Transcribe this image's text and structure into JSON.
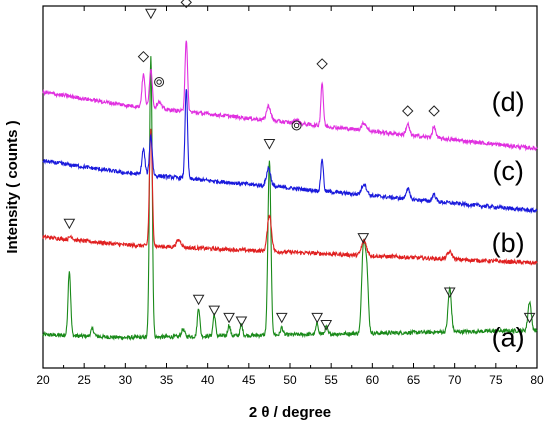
{
  "chart_data": {
    "type": "line",
    "xlabel": "2 θ / degree",
    "ylabel": "Intensity ( counts )",
    "xlim": [
      20,
      80
    ],
    "x_ticks": [
      20,
      25,
      30,
      35,
      40,
      45,
      50,
      55,
      60,
      65,
      70,
      75,
      80
    ],
    "y_ticks_shown": false,
    "legend": "none",
    "y_units": "relative intensity (arbitrary), 0 = bottom of plot, 100 = top",
    "series": [
      {
        "name": "(a)",
        "color": "#1a8a1a",
        "baseline": 8,
        "baseline_slope": 0.04,
        "peaks": [
          {
            "x": 23.2,
            "h": 18,
            "w": 0.16
          },
          {
            "x": 26.0,
            "h": 2,
            "w": 0.2
          },
          {
            "x": 33.1,
            "h": 78,
            "w": 0.16
          },
          {
            "x": 37.0,
            "h": 2,
            "w": 0.2
          },
          {
            "x": 38.9,
            "h": 8,
            "w": 0.15
          },
          {
            "x": 40.8,
            "h": 6,
            "w": 0.15
          },
          {
            "x": 42.6,
            "h": 3,
            "w": 0.15
          },
          {
            "x": 44.1,
            "h": 3,
            "w": 0.15
          },
          {
            "x": 47.5,
            "h": 48,
            "w": 0.18
          },
          {
            "x": 49.0,
            "h": 2,
            "w": 0.15
          },
          {
            "x": 53.3,
            "h": 3,
            "w": 0.15
          },
          {
            "x": 54.4,
            "h": 2,
            "w": 0.15
          },
          {
            "x": 58.9,
            "h": 23,
            "w": 0.2
          },
          {
            "x": 59.3,
            "h": 18,
            "w": 0.2
          },
          {
            "x": 69.4,
            "h": 12,
            "w": 0.2
          },
          {
            "x": 79.1,
            "h": 8,
            "w": 0.2
          }
        ]
      },
      {
        "name": "(b)",
        "color": "#e02020",
        "baseline": 35,
        "baseline_slope": -0.1,
        "peaks": [
          {
            "x": 23.4,
            "h": 1,
            "w": 0.2
          },
          {
            "x": 33.1,
            "h": 32,
            "w": 0.17
          },
          {
            "x": 36.5,
            "h": 2,
            "w": 0.3
          },
          {
            "x": 47.5,
            "h": 10,
            "w": 0.25
          },
          {
            "x": 59.0,
            "h": 4,
            "w": 0.3
          },
          {
            "x": 69.4,
            "h": 2,
            "w": 0.3
          }
        ]
      },
      {
        "name": "(c)",
        "color": "#1a1adc",
        "baseline": 56,
        "baseline_slope": -0.21,
        "peaks": [
          {
            "x": 32.2,
            "h": 7,
            "w": 0.18
          },
          {
            "x": 33.1,
            "h": 11,
            "w": 0.17
          },
          {
            "x": 37.4,
            "h": 25,
            "w": 0.15
          },
          {
            "x": 47.4,
            "h": 5,
            "w": 0.25
          },
          {
            "x": 53.9,
            "h": 9,
            "w": 0.15
          },
          {
            "x": 59.0,
            "h": 3,
            "w": 0.3
          },
          {
            "x": 64.3,
            "h": 3,
            "w": 0.2
          },
          {
            "x": 67.5,
            "h": 2,
            "w": 0.2
          }
        ]
      },
      {
        "name": "(d)",
        "color": "#e030e0",
        "baseline": 75,
        "baseline_slope": -0.24,
        "peaks": [
          {
            "x": 32.2,
            "h": 9,
            "w": 0.18
          },
          {
            "x": 33.1,
            "h": 11,
            "w": 0.17
          },
          {
            "x": 34.1,
            "h": 2,
            "w": 0.25
          },
          {
            "x": 37.4,
            "h": 20,
            "w": 0.15
          },
          {
            "x": 47.4,
            "h": 4,
            "w": 0.25
          },
          {
            "x": 50.8,
            "h": 1,
            "w": 0.25
          },
          {
            "x": 53.9,
            "h": 12,
            "w": 0.15
          },
          {
            "x": 59.0,
            "h": 2,
            "w": 0.3
          },
          {
            "x": 64.3,
            "h": 3,
            "w": 0.2
          },
          {
            "x": 67.5,
            "h": 3,
            "w": 0.2
          }
        ]
      }
    ],
    "markers": [
      {
        "shape": "triangle",
        "x": 23.2,
        "y": 40
      },
      {
        "shape": "triangle",
        "x": 33.1,
        "y": 98
      },
      {
        "shape": "triangle",
        "x": 38.9,
        "y": 19
      },
      {
        "shape": "triangle",
        "x": 40.8,
        "y": 16
      },
      {
        "shape": "triangle",
        "x": 42.6,
        "y": 14
      },
      {
        "shape": "triangle",
        "x": 44.1,
        "y": 13
      },
      {
        "shape": "triangle",
        "x": 47.5,
        "y": 62
      },
      {
        "shape": "triangle",
        "x": 49.0,
        "y": 14
      },
      {
        "shape": "triangle",
        "x": 53.3,
        "y": 14
      },
      {
        "shape": "triangle",
        "x": 54.4,
        "y": 12
      },
      {
        "shape": "triangle",
        "x": 58.9,
        "y": 36
      },
      {
        "shape": "triangle",
        "x": 69.4,
        "y": 21
      },
      {
        "shape": "triangle",
        "x": 79.1,
        "y": 14
      },
      {
        "shape": "diamond",
        "x": 32.2,
        "y": 86
      },
      {
        "shape": "diamond",
        "x": 37.4,
        "y": 101
      },
      {
        "shape": "diamond",
        "x": 53.9,
        "y": 84
      },
      {
        "shape": "diamond",
        "x": 64.3,
        "y": 71
      },
      {
        "shape": "diamond",
        "x": 67.5,
        "y": 71
      },
      {
        "shape": "circle",
        "x": 34.1,
        "y": 79
      },
      {
        "shape": "circle",
        "x": 50.8,
        "y": 67
      }
    ],
    "curve_labels": [
      {
        "text": "(d)",
        "x": 76.5,
        "y": 71
      },
      {
        "text": "(c)",
        "x": 76.5,
        "y": 52
      },
      {
        "text": "(b)",
        "x": 76.5,
        "y": 32
      },
      {
        "text": "(a)",
        "x": 76.5,
        "y": 6
      }
    ]
  }
}
